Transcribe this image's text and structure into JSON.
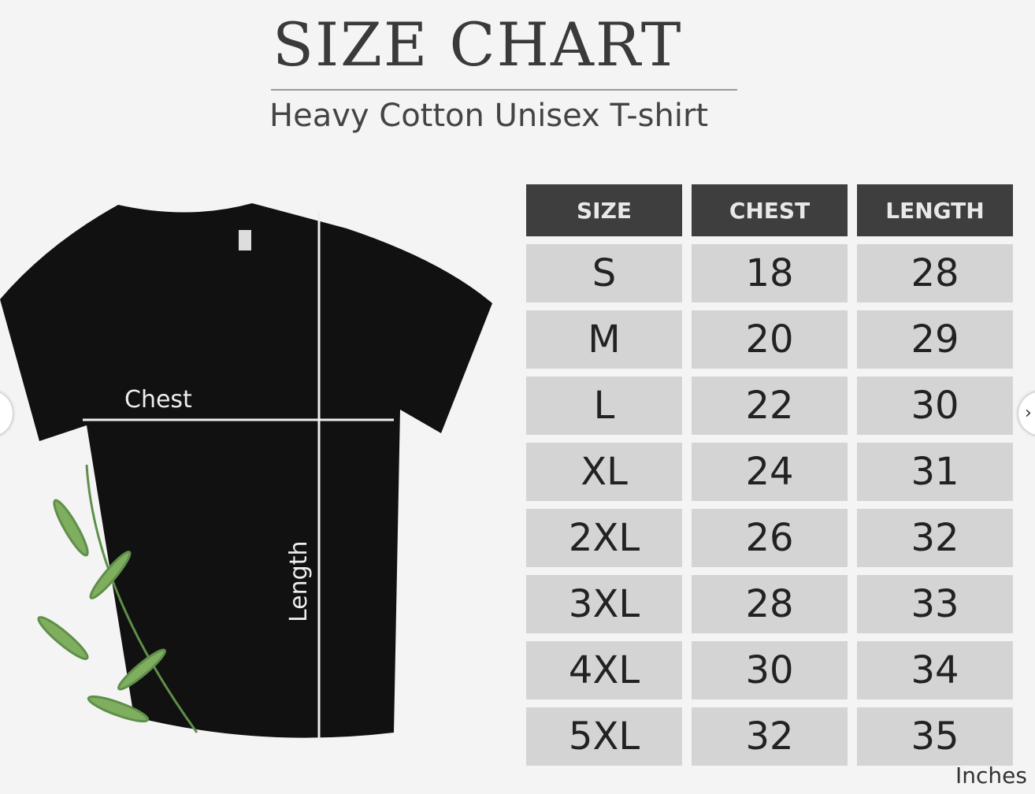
{
  "title": "SIZE CHART",
  "subtitle": "Heavy Cotton Unisex T-shirt",
  "diagram": {
    "chest": "Chest",
    "length": "Length"
  },
  "table": {
    "headers": [
      "SIZE",
      "CHEST",
      "LENGTH"
    ],
    "rows": [
      [
        "S",
        "18",
        "28"
      ],
      [
        "M",
        "20",
        "29"
      ],
      [
        "L",
        "22",
        "30"
      ],
      [
        "XL",
        "24",
        "31"
      ],
      [
        "2XL",
        "26",
        "32"
      ],
      [
        "3XL",
        "28",
        "33"
      ],
      [
        "4XL",
        "30",
        "34"
      ],
      [
        "5XL",
        "32",
        "35"
      ]
    ]
  },
  "units": "Inches",
  "carousel": {
    "prev_icon": "chevron-left-icon",
    "next_icon": "chevron-right-icon"
  }
}
